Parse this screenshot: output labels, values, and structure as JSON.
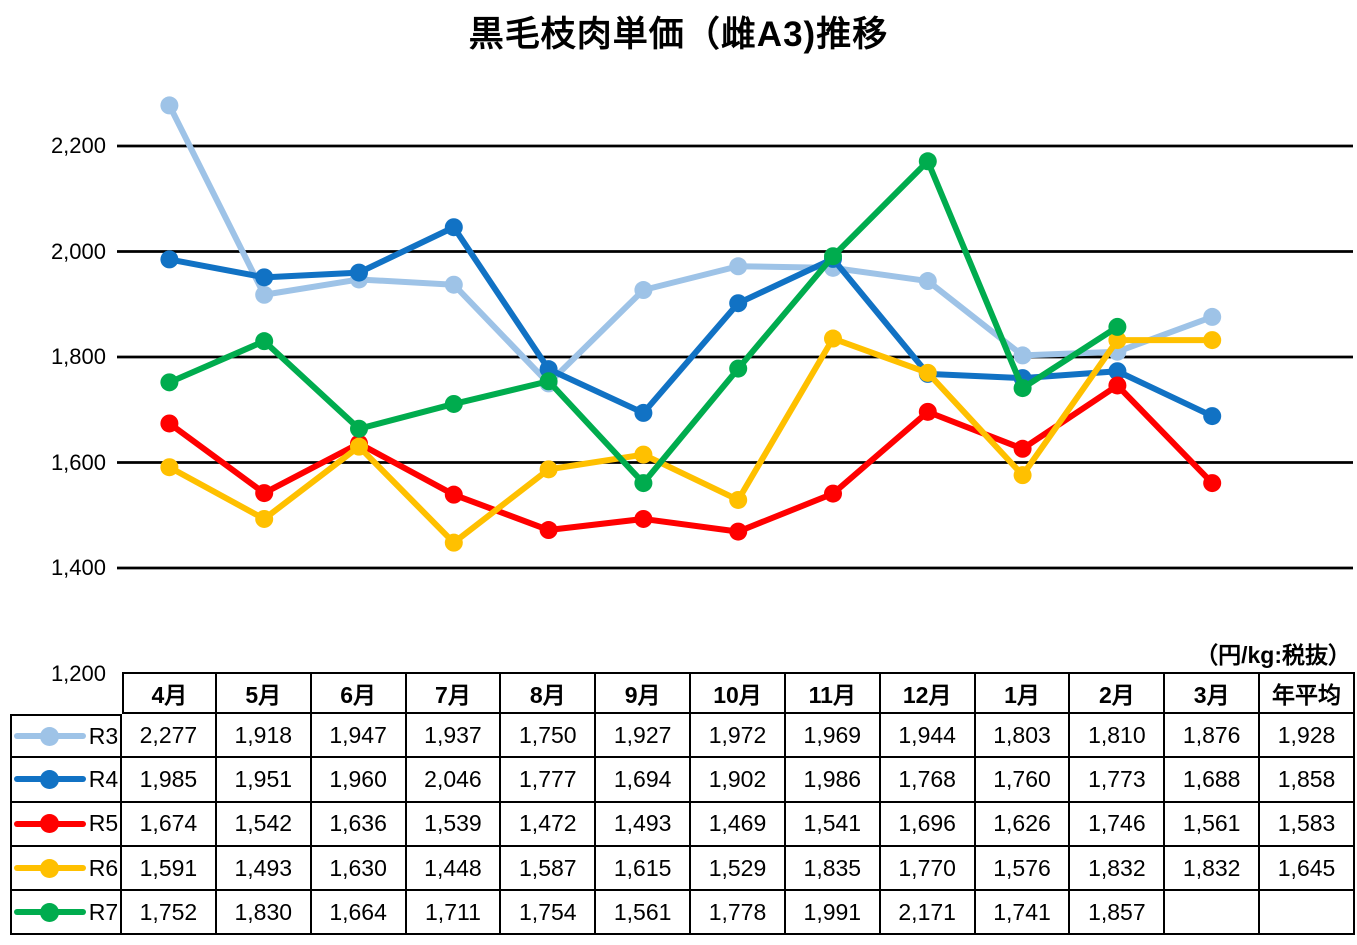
{
  "title": "黒毛枝肉単価（雌A3)推移",
  "unit_note": "（円/kg:税抜）",
  "y_axis": {
    "ticks": [
      "2,200",
      "2,000",
      "1,800",
      "1,600",
      "1,400",
      "1,200"
    ],
    "tick_values": [
      2200,
      2000,
      1800,
      1600,
      1400,
      1200
    ]
  },
  "chart_data": {
    "type": "line",
    "title": "黒毛枝肉単価（雌A3)推移",
    "xlabel": "",
    "ylabel": "円/kg（税抜）",
    "ylim": [
      1200,
      2300
    ],
    "grid": true,
    "gridline_values": [
      1400,
      1600,
      1800,
      2000,
      2200
    ],
    "legend_position": "data-table-left",
    "categories": [
      "4月",
      "5月",
      "6月",
      "7月",
      "8月",
      "9月",
      "10月",
      "11月",
      "12月",
      "1月",
      "2月",
      "3月"
    ],
    "series": [
      {
        "name": "R3",
        "color": "#9EC3E7",
        "values": [
          2277,
          1918,
          1947,
          1937,
          1750,
          1927,
          1972,
          1969,
          1944,
          1803,
          1810,
          1876
        ],
        "annual_avg": 1928
      },
      {
        "name": "R4",
        "color": "#1172C4",
        "values": [
          1985,
          1951,
          1960,
          2046,
          1777,
          1694,
          1902,
          1986,
          1768,
          1760,
          1773,
          1688
        ],
        "annual_avg": 1858
      },
      {
        "name": "R5",
        "color": "#FF0000",
        "values": [
          1674,
          1542,
          1636,
          1539,
          1472,
          1493,
          1469,
          1541,
          1696,
          1626,
          1746,
          1561
        ],
        "annual_avg": 1583
      },
      {
        "name": "R6",
        "color": "#FFC000",
        "values": [
          1591,
          1493,
          1630,
          1448,
          1587,
          1615,
          1529,
          1835,
          1770,
          1576,
          1832,
          1832
        ],
        "annual_avg": 1645
      },
      {
        "name": "R7",
        "color": "#00AC4E",
        "values": [
          1752,
          1830,
          1664,
          1711,
          1754,
          1561,
          1778,
          1991,
          2171,
          1741,
          1857,
          null
        ],
        "annual_avg": null
      }
    ]
  },
  "table": {
    "col_headers": [
      "4月",
      "5月",
      "6月",
      "7月",
      "8月",
      "9月",
      "10月",
      "11月",
      "12月",
      "1月",
      "2月",
      "3月",
      "年平均"
    ],
    "rows": [
      {
        "name": "R3",
        "color": "#9EC3E7",
        "cells": [
          "2,277",
          "1,918",
          "1,947",
          "1,937",
          "1,750",
          "1,927",
          "1,972",
          "1,969",
          "1,944",
          "1,803",
          "1,810",
          "1,876",
          "1,928"
        ]
      },
      {
        "name": "R4",
        "color": "#1172C4",
        "cells": [
          "1,985",
          "1,951",
          "1,960",
          "2,046",
          "1,777",
          "1,694",
          "1,902",
          "1,986",
          "1,768",
          "1,760",
          "1,773",
          "1,688",
          "1,858"
        ]
      },
      {
        "name": "R5",
        "color": "#FF0000",
        "cells": [
          "1,674",
          "1,542",
          "1,636",
          "1,539",
          "1,472",
          "1,493",
          "1,469",
          "1,541",
          "1,696",
          "1,626",
          "1,746",
          "1,561",
          "1,583"
        ]
      },
      {
        "name": "R6",
        "color": "#FFC000",
        "cells": [
          "1,591",
          "1,493",
          "1,630",
          "1,448",
          "1,587",
          "1,615",
          "1,529",
          "1,835",
          "1,770",
          "1,576",
          "1,832",
          "1,832",
          "1,645"
        ]
      },
      {
        "name": "R7",
        "color": "#00AC4E",
        "cells": [
          "1,752",
          "1,830",
          "1,664",
          "1,711",
          "1,754",
          "1,561",
          "1,778",
          "1,991",
          "2,171",
          "1,741",
          "1,857",
          "",
          ""
        ]
      }
    ]
  }
}
